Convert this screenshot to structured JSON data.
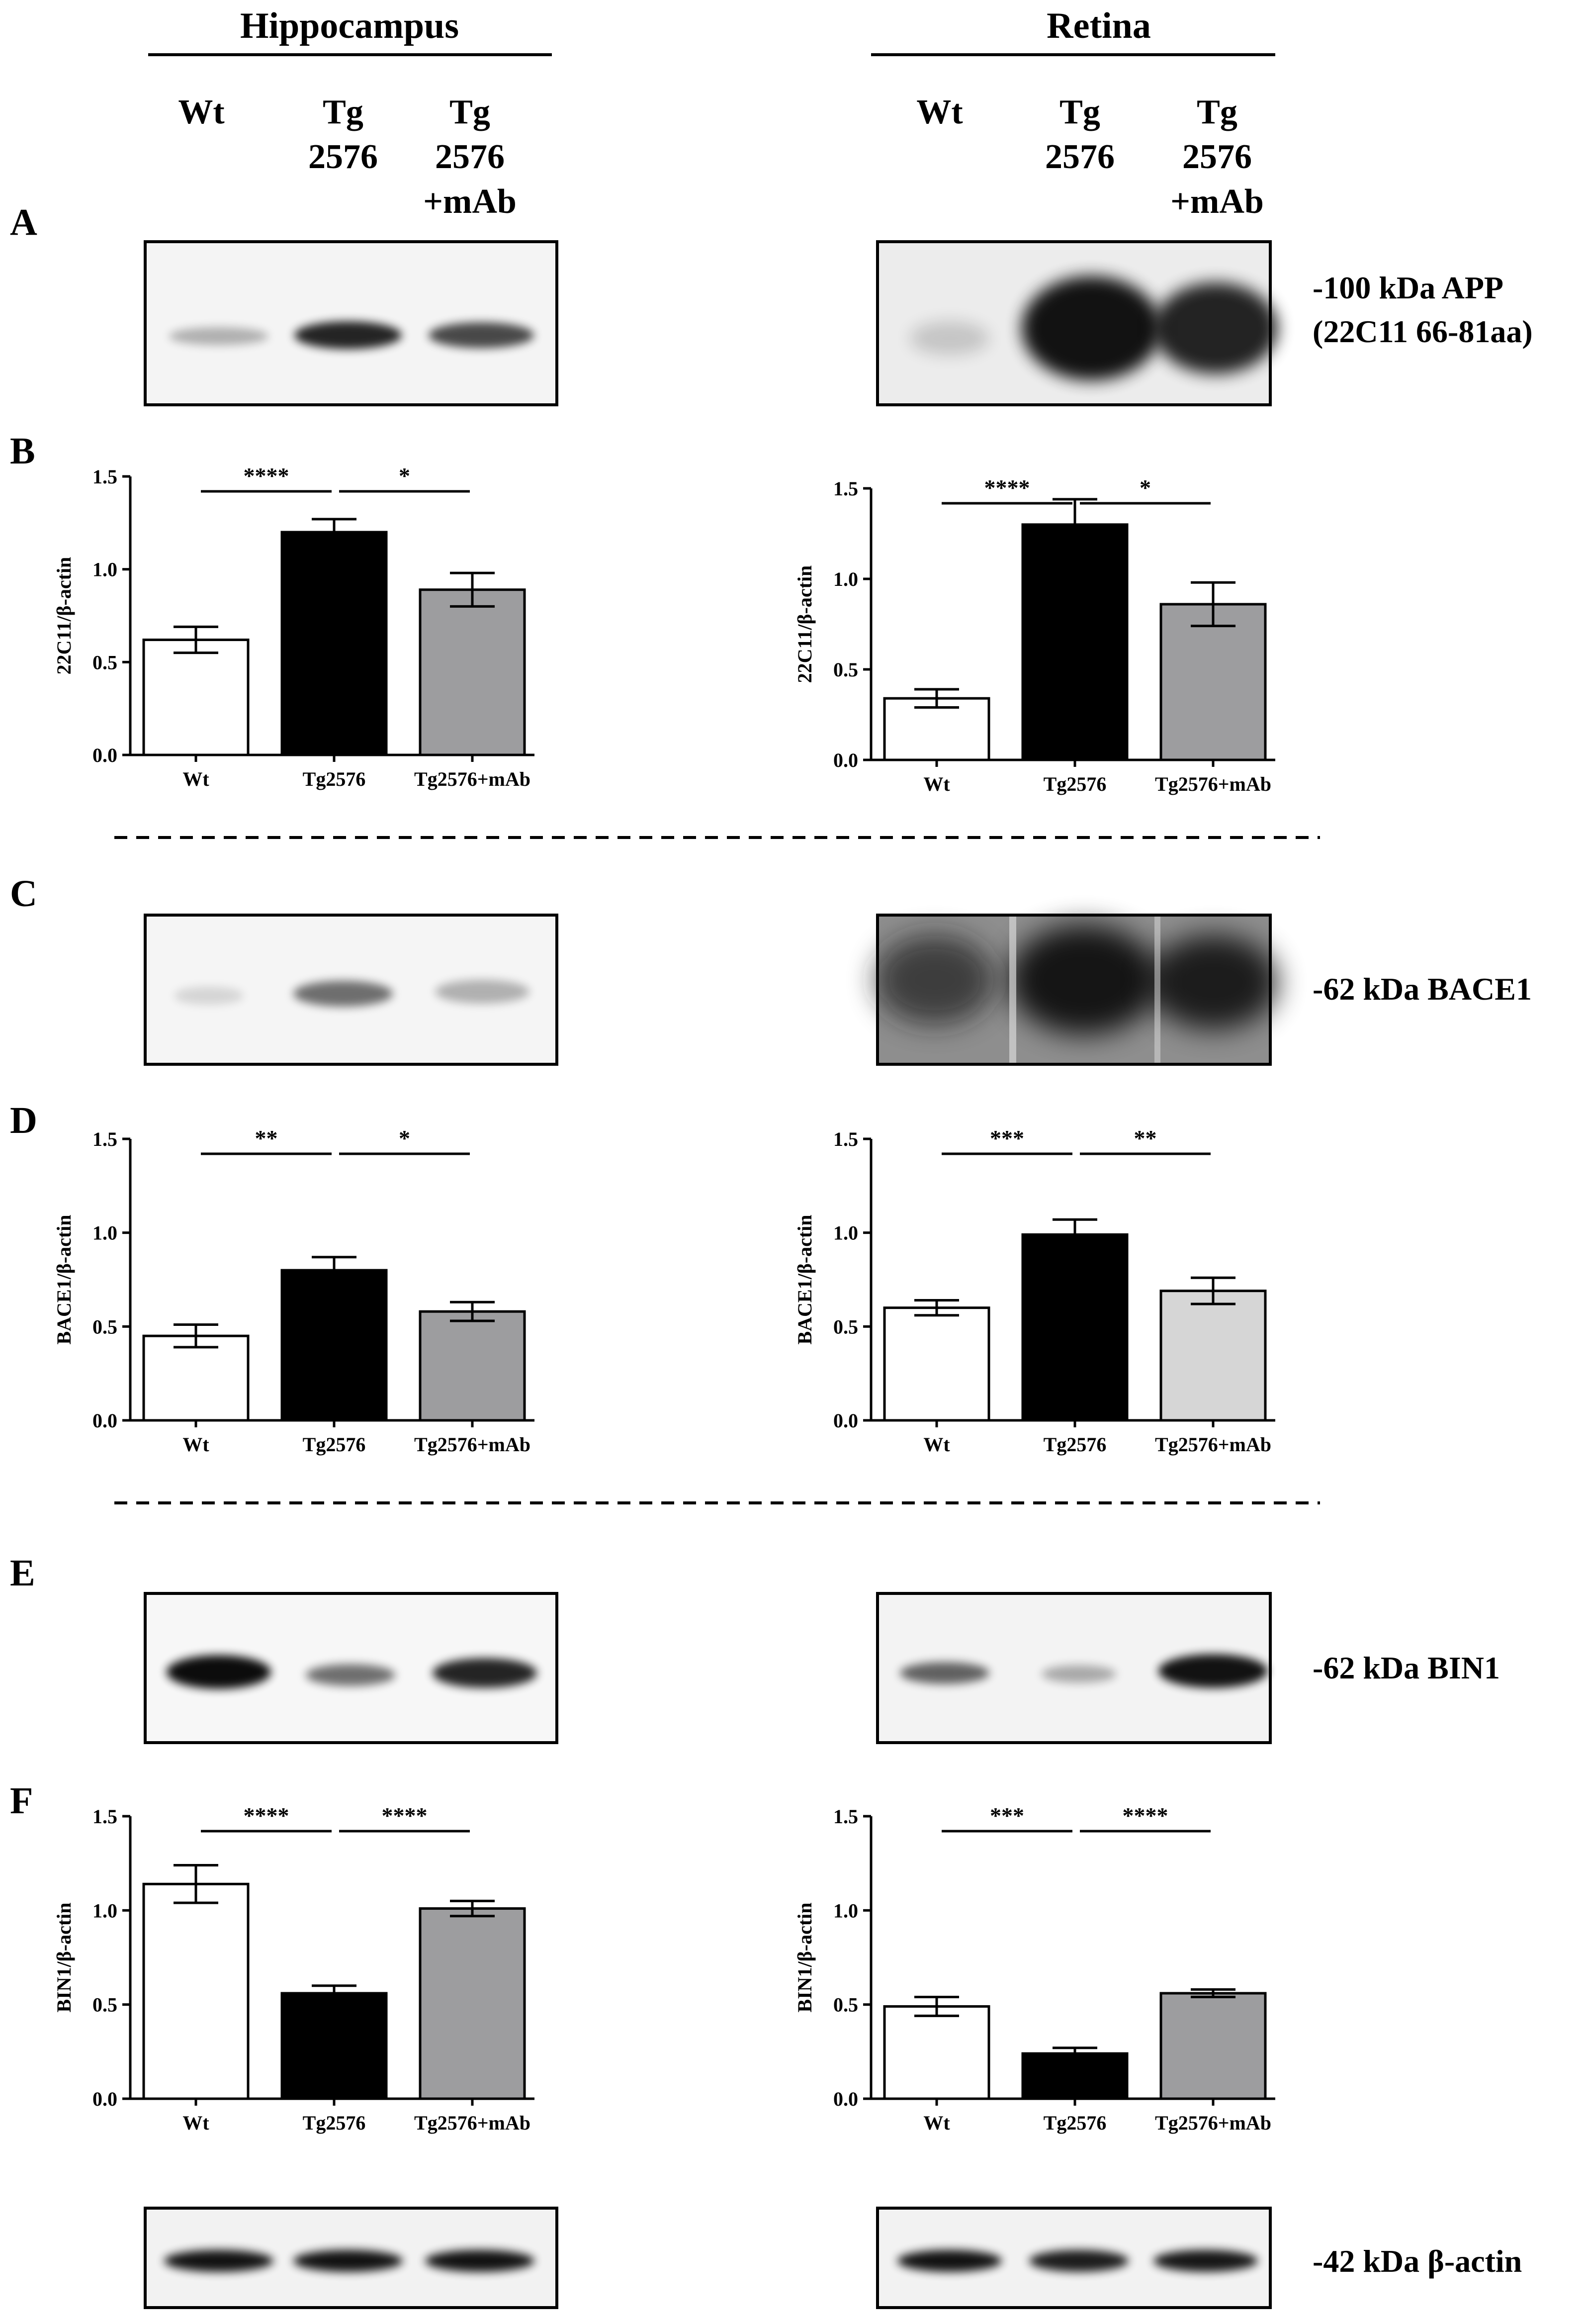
{
  "headers": {
    "hippocampus": "Hippocampus",
    "retina": "Retina"
  },
  "lanes": {
    "hippocampus": [
      [
        "Wt"
      ],
      [
        "Tg",
        "2576"
      ],
      [
        "Tg",
        "2576",
        "+mAb"
      ]
    ],
    "retina": [
      [
        "Wt"
      ],
      [
        "Tg",
        "2576"
      ],
      [
        "Tg",
        "2576",
        "+mAb"
      ]
    ]
  },
  "panel_letters": [
    "A",
    "B",
    "C",
    "D",
    "E",
    "F"
  ],
  "blots": {
    "app": {
      "label_lines": [
        "-100 kDa APP",
        "(22C11 66-81aa)"
      ]
    },
    "bace1": {
      "label_lines": [
        "-62 kDa BACE1"
      ]
    },
    "bin1": {
      "label_lines": [
        "-62 kDa BIN1"
      ]
    },
    "actin": {
      "label_lines": [
        "-42 kDa β-actin"
      ]
    }
  },
  "colors": {
    "wt": "#ffffff",
    "tg": "#000000",
    "mab": "#9d9d9f",
    "mab_light": "#d6d6d6"
  },
  "chart_data": [
    {
      "id": "B-hippocampus",
      "type": "bar",
      "categories": [
        "Wt",
        "Tg2576",
        "Tg2576+mAb"
      ],
      "values": [
        0.62,
        1.2,
        0.89
      ],
      "errors": [
        0.07,
        0.07,
        0.09
      ],
      "ylabel": "22C11/β-actin",
      "ylim": [
        0,
        1.5
      ],
      "yticks": [
        "0.0",
        "0.5",
        "1.0",
        "1.5"
      ],
      "significance": [
        {
          "from": 0,
          "to": 1,
          "label": "****"
        },
        {
          "from": 1,
          "to": 2,
          "label": "*"
        }
      ]
    },
    {
      "id": "B-retina",
      "type": "bar",
      "categories": [
        "Wt",
        "Tg2576",
        "Tg2576+mAb"
      ],
      "values": [
        0.34,
        1.3,
        0.86
      ],
      "errors": [
        0.05,
        0.14,
        0.12
      ],
      "ylabel": "22C11/β-actin",
      "ylim": [
        0,
        1.5
      ],
      "yticks": [
        "0.0",
        "0.5",
        "1.0",
        "1.5"
      ],
      "significance": [
        {
          "from": 0,
          "to": 1,
          "label": "****"
        },
        {
          "from": 1,
          "to": 2,
          "label": "*"
        }
      ]
    },
    {
      "id": "D-hippocampus",
      "type": "bar",
      "categories": [
        "Wt",
        "Tg2576",
        "Tg2576+mAb"
      ],
      "values": [
        0.45,
        0.8,
        0.58
      ],
      "errors": [
        0.06,
        0.07,
        0.05
      ],
      "ylabel": "BACE1/β-actin",
      "ylim": [
        0,
        1.5
      ],
      "yticks": [
        "0.0",
        "0.5",
        "1.0",
        "1.5"
      ],
      "significance": [
        {
          "from": 0,
          "to": 1,
          "label": "**"
        },
        {
          "from": 1,
          "to": 2,
          "label": "*"
        }
      ]
    },
    {
      "id": "D-retina",
      "type": "bar",
      "categories": [
        "Wt",
        "Tg2576",
        "Tg2576+mAb"
      ],
      "values": [
        0.6,
        0.99,
        0.69
      ],
      "errors": [
        0.04,
        0.08,
        0.07
      ],
      "ylabel": "BACE1/β-actin",
      "ylim": [
        0,
        1.5
      ],
      "yticks": [
        "0.0",
        "0.5",
        "1.0",
        "1.5"
      ],
      "significance": [
        {
          "from": 0,
          "to": 1,
          "label": "***"
        },
        {
          "from": 1,
          "to": 2,
          "label": "**"
        }
      ]
    },
    {
      "id": "F-hippocampus",
      "type": "bar",
      "categories": [
        "Wt",
        "Tg2576",
        "Tg2576+mAb"
      ],
      "values": [
        1.14,
        0.56,
        1.01
      ],
      "errors": [
        0.1,
        0.04,
        0.04
      ],
      "ylabel": "BIN1/β-actin",
      "ylim": [
        0,
        1.5
      ],
      "yticks": [
        "0.0",
        "0.5",
        "1.0",
        "1.5"
      ],
      "significance": [
        {
          "from": 0,
          "to": 1,
          "label": "****"
        },
        {
          "from": 1,
          "to": 2,
          "label": "****"
        }
      ]
    },
    {
      "id": "F-retina",
      "type": "bar",
      "categories": [
        "Wt",
        "Tg2576",
        "Tg2576+mAb"
      ],
      "values": [
        0.49,
        0.24,
        0.56
      ],
      "errors": [
        0.05,
        0.03,
        0.02
      ],
      "ylabel": "BIN1/β-actin",
      "ylim": [
        0,
        1.5
      ],
      "yticks": [
        "0.0",
        "0.5",
        "1.0",
        "1.5"
      ],
      "significance": [
        {
          "from": 0,
          "to": 1,
          "label": "***"
        },
        {
          "from": 1,
          "to": 2,
          "label": "****"
        }
      ]
    }
  ]
}
